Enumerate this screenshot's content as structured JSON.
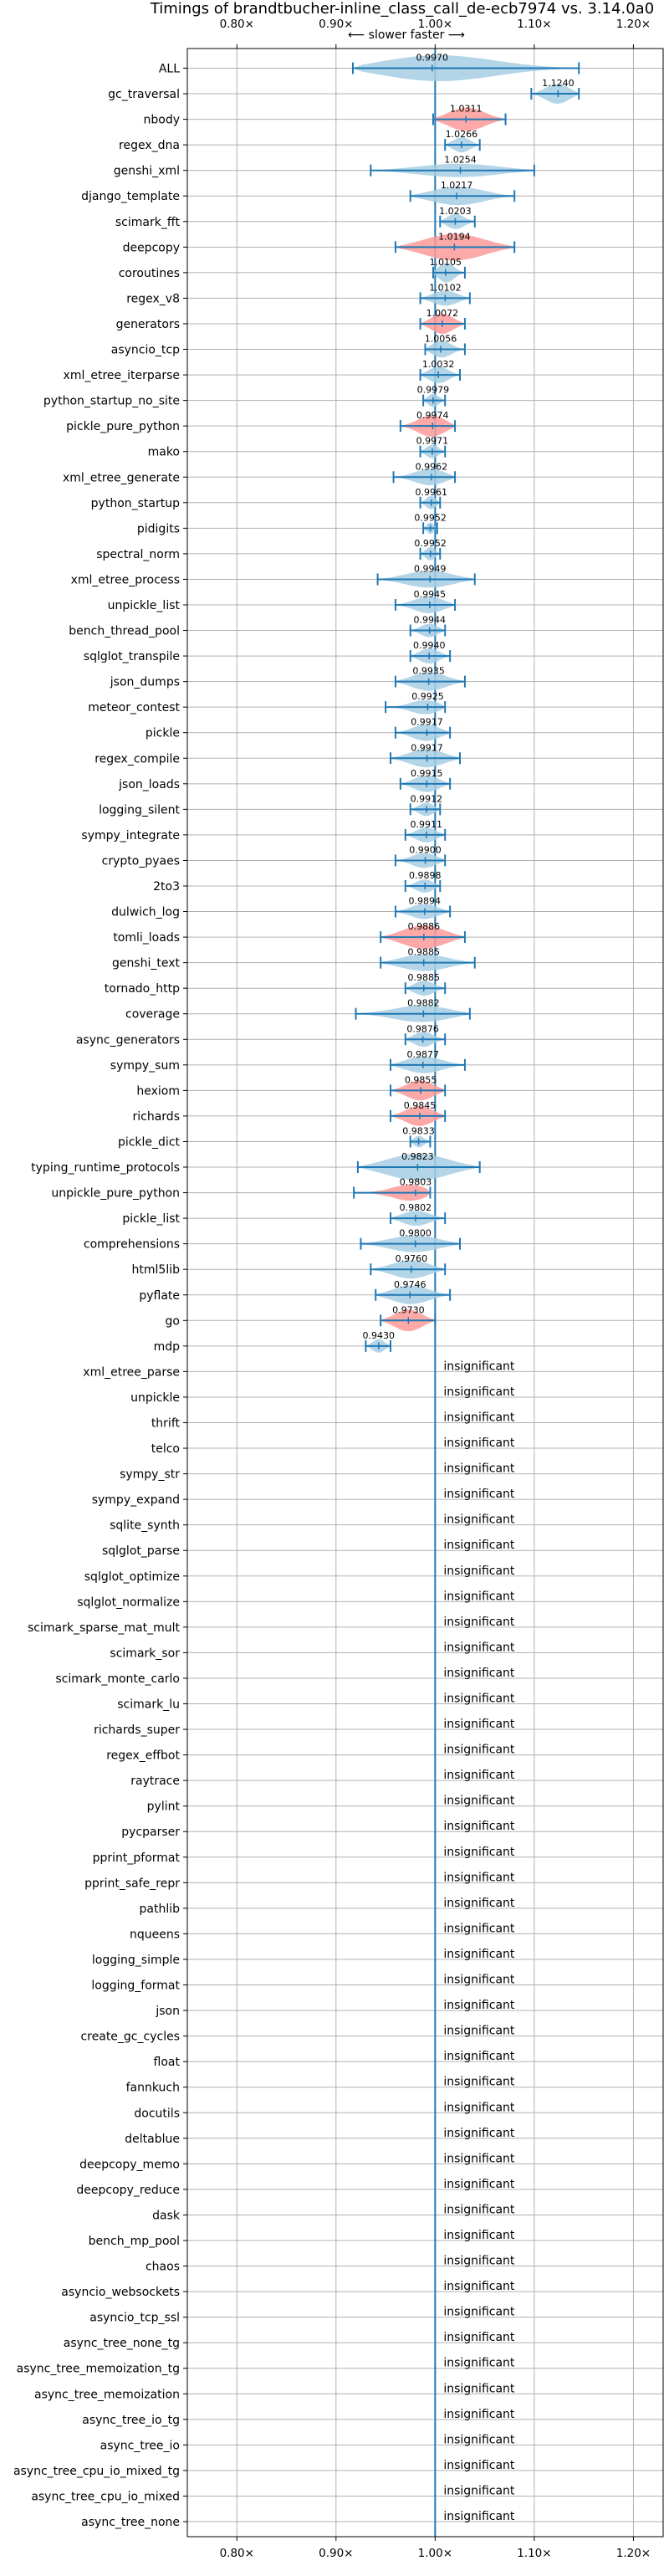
{
  "chart_data": {
    "type": "violin",
    "title": "Timings of brandtbucher-inline_class_call_de-ecb7974 vs. 3.14.0a0",
    "subtitle": "⟵ slower   faster ⟶",
    "xlim": [
      0.75,
      1.23
    ],
    "xticks": [
      0.8,
      0.9,
      1.0,
      1.1,
      1.2
    ],
    "xtick_labels": [
      "0.80×",
      "0.90×",
      "1.00×",
      "1.10×",
      "1.20×"
    ],
    "reference_line": 1.0,
    "grid": true,
    "colors": {
      "faster": "#a6cee3",
      "slower": "#fb9a99",
      "line": "#1f78b4",
      "grid": "#b0b0b0"
    },
    "insignificant_text": "insignificant",
    "benchmarks": [
      {
        "name": "ALL",
        "value": 0.997,
        "label": "0.9970",
        "min": 0.917,
        "max": 1.145,
        "width": 16,
        "slower": false
      },
      {
        "name": "gc_traversal",
        "value": 1.124,
        "label": "1.1240",
        "min": 1.097,
        "max": 1.145,
        "width": 12,
        "slower": false
      },
      {
        "name": "nbody",
        "value": 1.0311,
        "label": "1.0311",
        "min": 0.998,
        "max": 1.071,
        "width": 14,
        "slower": true
      },
      {
        "name": "regex_dna",
        "value": 1.0266,
        "label": "1.0266",
        "min": 1.01,
        "max": 1.045,
        "width": 9,
        "slower": false
      },
      {
        "name": "genshi_xml",
        "value": 1.0254,
        "label": "1.0254",
        "min": 0.935,
        "max": 1.1,
        "width": 8,
        "slower": false
      },
      {
        "name": "django_template",
        "value": 1.0217,
        "label": "1.0217",
        "min": 0.975,
        "max": 1.08,
        "width": 11,
        "slower": false
      },
      {
        "name": "scimark_fft",
        "value": 1.0203,
        "label": "1.0203",
        "min": 1.005,
        "max": 1.04,
        "width": 9,
        "slower": false
      },
      {
        "name": "deepcopy",
        "value": 1.0194,
        "label": "1.0194",
        "min": 0.96,
        "max": 1.08,
        "width": 16,
        "slower": true
      },
      {
        "name": "coroutines",
        "value": 1.0105,
        "label": "1.0105",
        "min": 0.998,
        "max": 1.03,
        "width": 12,
        "slower": false
      },
      {
        "name": "regex_v8",
        "value": 1.0102,
        "label": "1.0102",
        "min": 0.985,
        "max": 1.035,
        "width": 9,
        "slower": false
      },
      {
        "name": "generators",
        "value": 1.0072,
        "label": "1.0072",
        "min": 0.985,
        "max": 1.03,
        "width": 12,
        "slower": true
      },
      {
        "name": "asyncio_tcp",
        "value": 1.0056,
        "label": "1.0056",
        "min": 0.99,
        "max": 1.03,
        "width": 10,
        "slower": false
      },
      {
        "name": "xml_etree_iterparse",
        "value": 1.0032,
        "label": "1.0032",
        "min": 0.985,
        "max": 1.025,
        "width": 10,
        "slower": false
      },
      {
        "name": "python_startup_no_site",
        "value": 0.9979,
        "label": "0.9979",
        "min": 0.988,
        "max": 1.01,
        "width": 8,
        "slower": false
      },
      {
        "name": "pickle_pure_python",
        "value": 0.9974,
        "label": "0.9974",
        "min": 0.965,
        "max": 1.02,
        "width": 13,
        "slower": true
      },
      {
        "name": "mako",
        "value": 0.9971,
        "label": "0.9971",
        "min": 0.985,
        "max": 1.01,
        "width": 8,
        "slower": false
      },
      {
        "name": "xml_etree_generate",
        "value": 0.9962,
        "label": "0.9962",
        "min": 0.958,
        "max": 1.02,
        "width": 10,
        "slower": false
      },
      {
        "name": "python_startup",
        "value": 0.9961,
        "label": "0.9961",
        "min": 0.985,
        "max": 1.005,
        "width": 8,
        "slower": false
      },
      {
        "name": "pidigits",
        "value": 0.9952,
        "label": "0.9952",
        "min": 0.988,
        "max": 1.002,
        "width": 7,
        "slower": false
      },
      {
        "name": "spectral_norm",
        "value": 0.9952,
        "label": "0.9952",
        "min": 0.985,
        "max": 1.005,
        "width": 8,
        "slower": false
      },
      {
        "name": "xml_etree_process",
        "value": 0.9949,
        "label": "0.9949",
        "min": 0.942,
        "max": 1.04,
        "width": 10,
        "slower": false
      },
      {
        "name": "unpickle_list",
        "value": 0.9945,
        "label": "0.9945",
        "min": 0.96,
        "max": 1.02,
        "width": 10,
        "slower": false
      },
      {
        "name": "bench_thread_pool",
        "value": 0.9944,
        "label": "0.9944",
        "min": 0.975,
        "max": 1.01,
        "width": 8,
        "slower": false
      },
      {
        "name": "sqlglot_transpile",
        "value": 0.994,
        "label": "0.9940",
        "min": 0.975,
        "max": 1.015,
        "width": 9,
        "slower": false
      },
      {
        "name": "json_dumps",
        "value": 0.9935,
        "label": "0.9935",
        "min": 0.96,
        "max": 1.03,
        "width": 11,
        "slower": false
      },
      {
        "name": "meteor_contest",
        "value": 0.9925,
        "label": "0.9925",
        "min": 0.95,
        "max": 1.01,
        "width": 9,
        "slower": false
      },
      {
        "name": "pickle",
        "value": 0.9917,
        "label": "0.9917",
        "min": 0.96,
        "max": 1.015,
        "width": 10,
        "slower": false
      },
      {
        "name": "regex_compile",
        "value": 0.9917,
        "label": "0.9917",
        "min": 0.955,
        "max": 1.025,
        "width": 11,
        "slower": false
      },
      {
        "name": "json_loads",
        "value": 0.9915,
        "label": "0.9915",
        "min": 0.965,
        "max": 1.015,
        "width": 10,
        "slower": false
      },
      {
        "name": "logging_silent",
        "value": 0.9912,
        "label": "0.9912",
        "min": 0.975,
        "max": 1.005,
        "width": 8,
        "slower": false
      },
      {
        "name": "sympy_integrate",
        "value": 0.9911,
        "label": "0.9911",
        "min": 0.97,
        "max": 1.01,
        "width": 9,
        "slower": false
      },
      {
        "name": "crypto_pyaes",
        "value": 0.99,
        "label": "0.9900",
        "min": 0.96,
        "max": 1.01,
        "width": 9,
        "slower": false
      },
      {
        "name": "2to3",
        "value": 0.9898,
        "label": "0.9898",
        "min": 0.97,
        "max": 1.005,
        "width": 8,
        "slower": false
      },
      {
        "name": "dulwich_log",
        "value": 0.9894,
        "label": "0.9894",
        "min": 0.96,
        "max": 1.015,
        "width": 9,
        "slower": false
      },
      {
        "name": "tomli_loads",
        "value": 0.9886,
        "label": "0.9886",
        "min": 0.945,
        "max": 1.03,
        "width": 14,
        "slower": true
      },
      {
        "name": "genshi_text",
        "value": 0.9885,
        "label": "0.9885",
        "min": 0.945,
        "max": 1.04,
        "width": 10,
        "slower": false
      },
      {
        "name": "tornado_http",
        "value": 0.9885,
        "label": "0.9885",
        "min": 0.97,
        "max": 1.01,
        "width": 9,
        "slower": false
      },
      {
        "name": "coverage",
        "value": 0.9882,
        "label": "0.9882",
        "min": 0.92,
        "max": 1.035,
        "width": 10,
        "slower": false
      },
      {
        "name": "async_generators",
        "value": 0.9876,
        "label": "0.9876",
        "min": 0.97,
        "max": 1.01,
        "width": 9,
        "slower": false
      },
      {
        "name": "sympy_sum",
        "value": 0.9877,
        "label": "0.9877",
        "min": 0.955,
        "max": 1.03,
        "width": 10,
        "slower": false
      },
      {
        "name": "hexiom",
        "value": 0.9855,
        "label": "0.9855",
        "min": 0.955,
        "max": 1.01,
        "width": 12,
        "slower": true
      },
      {
        "name": "richards",
        "value": 0.9845,
        "label": "0.9845",
        "min": 0.955,
        "max": 1.01,
        "width": 12,
        "slower": true
      },
      {
        "name": "pickle_dict",
        "value": 0.9833,
        "label": "0.9833",
        "min": 0.975,
        "max": 0.995,
        "width": 7,
        "slower": false
      },
      {
        "name": "typing_runtime_protocols",
        "value": 0.9823,
        "label": "0.9823",
        "min": 0.922,
        "max": 1.045,
        "width": 16,
        "slower": false
      },
      {
        "name": "unpickle_pure_python",
        "value": 0.9803,
        "label": "0.9803",
        "min": 0.918,
        "max": 0.995,
        "width": 11,
        "slower": true
      },
      {
        "name": "pickle_list",
        "value": 0.9802,
        "label": "0.9802",
        "min": 0.955,
        "max": 1.01,
        "width": 9,
        "slower": false
      },
      {
        "name": "comprehensions",
        "value": 0.98,
        "label": "0.9800",
        "min": 0.925,
        "max": 1.025,
        "width": 10,
        "slower": false
      },
      {
        "name": "html5lib",
        "value": 0.976,
        "label": "0.9760",
        "min": 0.935,
        "max": 1.01,
        "width": 11,
        "slower": false
      },
      {
        "name": "pyflate",
        "value": 0.9746,
        "label": "0.9746",
        "min": 0.94,
        "max": 1.015,
        "width": 11,
        "slower": false
      },
      {
        "name": "go",
        "value": 0.973,
        "label": "0.9730",
        "min": 0.945,
        "max": 1.0,
        "width": 13,
        "slower": true
      },
      {
        "name": "mdp",
        "value": 0.943,
        "label": "0.9430",
        "min": 0.93,
        "max": 0.955,
        "width": 8,
        "slower": false
      },
      {
        "name": "xml_etree_parse",
        "insignificant": true
      },
      {
        "name": "unpickle",
        "insignificant": true
      },
      {
        "name": "thrift",
        "insignificant": true
      },
      {
        "name": "telco",
        "insignificant": true
      },
      {
        "name": "sympy_str",
        "insignificant": true
      },
      {
        "name": "sympy_expand",
        "insignificant": true
      },
      {
        "name": "sqlite_synth",
        "insignificant": true
      },
      {
        "name": "sqlglot_parse",
        "insignificant": true
      },
      {
        "name": "sqlglot_optimize",
        "insignificant": true
      },
      {
        "name": "sqlglot_normalize",
        "insignificant": true
      },
      {
        "name": "scimark_sparse_mat_mult",
        "insignificant": true
      },
      {
        "name": "scimark_sor",
        "insignificant": true
      },
      {
        "name": "scimark_monte_carlo",
        "insignificant": true
      },
      {
        "name": "scimark_lu",
        "insignificant": true
      },
      {
        "name": "richards_super",
        "insignificant": true
      },
      {
        "name": "regex_effbot",
        "insignificant": true
      },
      {
        "name": "raytrace",
        "insignificant": true
      },
      {
        "name": "pylint",
        "insignificant": true
      },
      {
        "name": "pycparser",
        "insignificant": true
      },
      {
        "name": "pprint_pformat",
        "insignificant": true
      },
      {
        "name": "pprint_safe_repr",
        "insignificant": true
      },
      {
        "name": "pathlib",
        "insignificant": true
      },
      {
        "name": "nqueens",
        "insignificant": true
      },
      {
        "name": "logging_simple",
        "insignificant": true
      },
      {
        "name": "logging_format",
        "insignificant": true
      },
      {
        "name": "json",
        "insignificant": true
      },
      {
        "name": "create_gc_cycles",
        "insignificant": true
      },
      {
        "name": "float",
        "insignificant": true
      },
      {
        "name": "fannkuch",
        "insignificant": true
      },
      {
        "name": "docutils",
        "insignificant": true
      },
      {
        "name": "deltablue",
        "insignificant": true
      },
      {
        "name": "deepcopy_memo",
        "insignificant": true
      },
      {
        "name": "deepcopy_reduce",
        "insignificant": true
      },
      {
        "name": "dask",
        "insignificant": true
      },
      {
        "name": "bench_mp_pool",
        "insignificant": true
      },
      {
        "name": "chaos",
        "insignificant": true
      },
      {
        "name": "asyncio_websockets",
        "insignificant": true
      },
      {
        "name": "asyncio_tcp_ssl",
        "insignificant": true
      },
      {
        "name": "async_tree_none_tg",
        "insignificant": true
      },
      {
        "name": "async_tree_memoization_tg",
        "insignificant": true
      },
      {
        "name": "async_tree_memoization",
        "insignificant": true
      },
      {
        "name": "async_tree_io_tg",
        "insignificant": true
      },
      {
        "name": "async_tree_io",
        "insignificant": true
      },
      {
        "name": "async_tree_cpu_io_mixed_tg",
        "insignificant": true
      },
      {
        "name": "async_tree_cpu_io_mixed",
        "insignificant": true
      },
      {
        "name": "async_tree_none",
        "insignificant": true
      }
    ]
  }
}
